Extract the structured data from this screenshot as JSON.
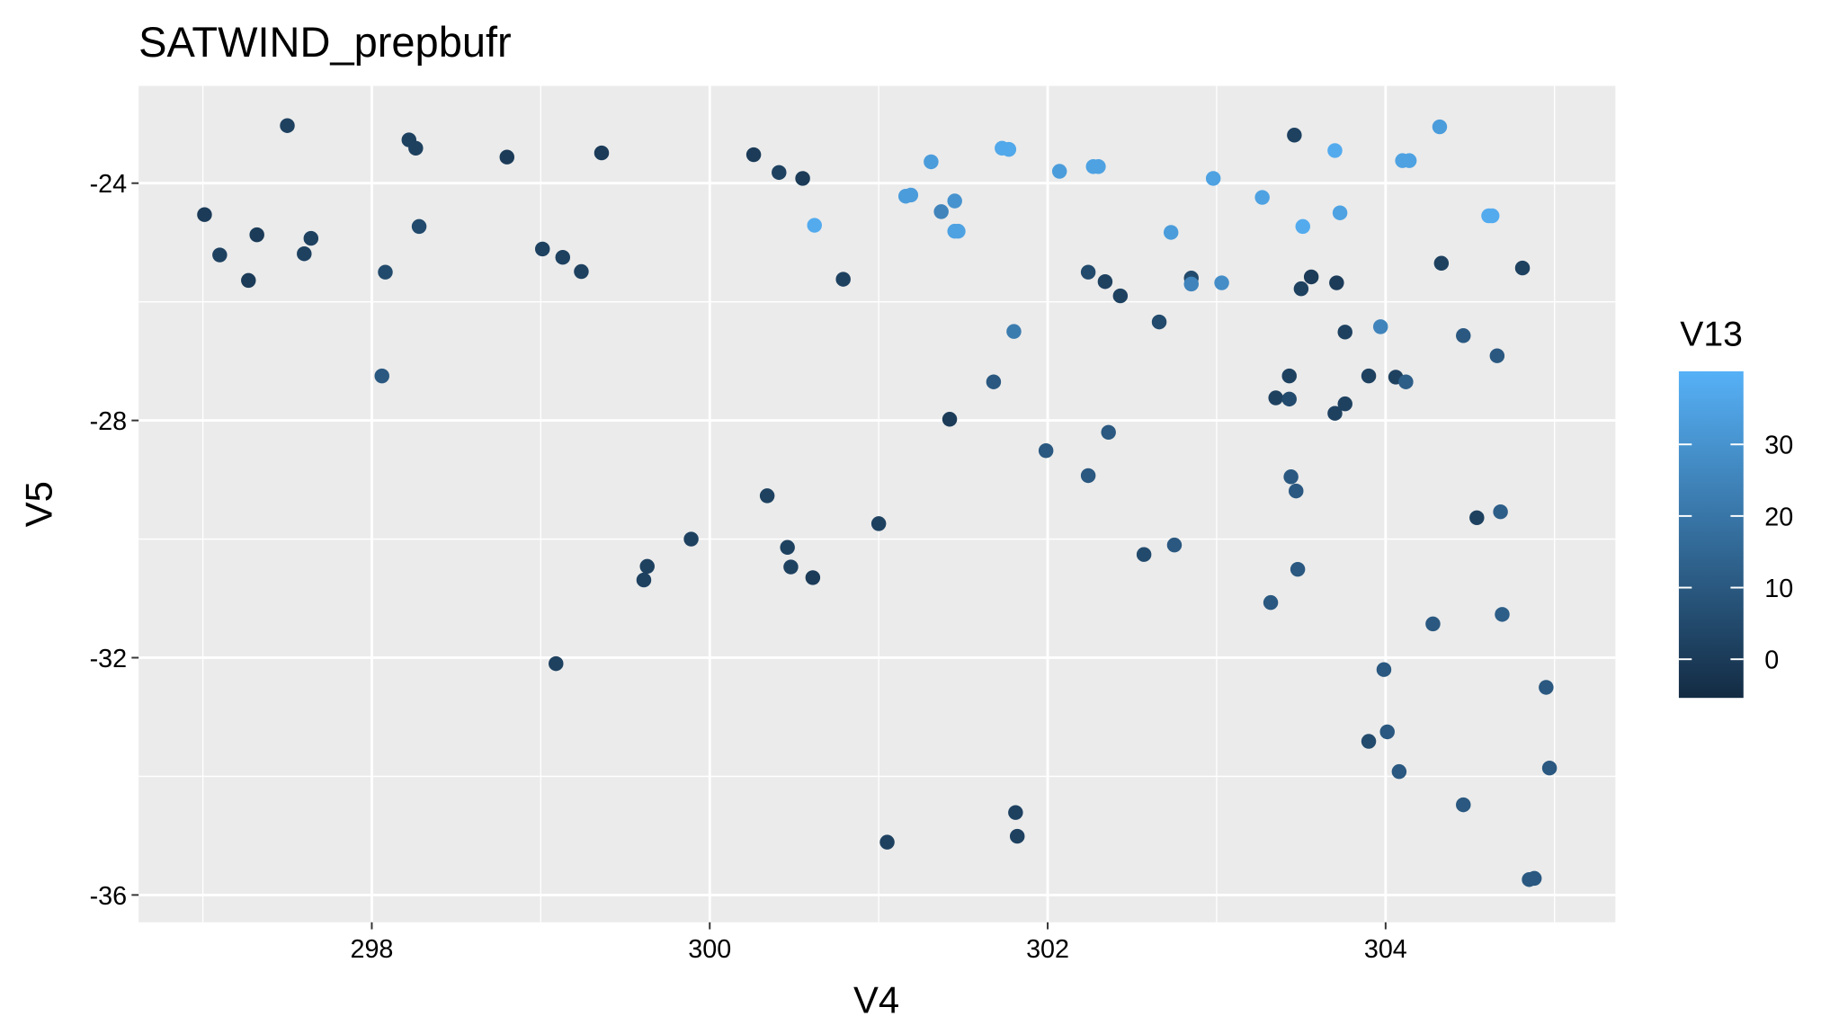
{
  "chart_data": {
    "type": "scatter",
    "title": "SATWIND_prepbufr",
    "x_label": "V4",
    "y_label": "V5",
    "color_label": "V13",
    "x": [
      297.01,
      297.1,
      297.27,
      297.32,
      297.5,
      297.6,
      297.64,
      298.06,
      298.08,
      298.22,
      298.26,
      298.28,
      298.8,
      299.01,
      299.13,
      299.24,
      299.36,
      299.09,
      299.61,
      299.63,
      299.89,
      300.26,
      300.34,
      300.41,
      300.46,
      300.48,
      300.55,
      300.61,
      300.62,
      300.79,
      301.0,
      301.05,
      301.16,
      301.19,
      301.31,
      301.37,
      301.42,
      301.45,
      301.45,
      301.47,
      301.68,
      301.73,
      301.77,
      301.8,
      301.81,
      301.82,
      301.99,
      302.07,
      302.24,
      302.24,
      302.27,
      302.3,
      302.34,
      302.36,
      302.43,
      302.57,
      302.66,
      302.73,
      302.75,
      302.85,
      302.85,
      303.03,
      302.98,
      303.27,
      303.32,
      303.35,
      303.43,
      303.43,
      303.44,
      303.46,
      303.47,
      303.48,
      303.5,
      303.51,
      303.56,
      303.7,
      303.7,
      303.71,
      303.73,
      303.76,
      303.76,
      303.9,
      303.9,
      303.97,
      303.99,
      304.01,
      304.06,
      304.08,
      304.1,
      304.12,
      304.14,
      304.28,
      304.32,
      304.33,
      304.46,
      304.46,
      304.54,
      304.61,
      304.63,
      304.66,
      304.68,
      304.69,
      304.81,
      304.85,
      304.88,
      304.95,
      304.97
    ],
    "y": [
      -24.53,
      -25.21,
      -25.64,
      -24.87,
      -23.03,
      -25.19,
      -24.93,
      -27.25,
      -25.5,
      -23.27,
      -23.41,
      -24.73,
      -23.56,
      -25.11,
      -25.25,
      -25.49,
      -23.49,
      -32.1,
      -30.69,
      -30.46,
      -30.0,
      -23.52,
      -29.27,
      -23.82,
      -30.14,
      -30.47,
      -23.92,
      -30.65,
      -24.71,
      -25.62,
      -29.74,
      -35.11,
      -24.22,
      -24.2,
      -23.64,
      -24.48,
      -27.98,
      -24.3,
      -24.81,
      -24.81,
      -27.35,
      -23.41,
      -23.43,
      -26.5,
      -34.61,
      -35.01,
      -28.51,
      -23.8,
      -25.5,
      -28.93,
      -23.72,
      -23.72,
      -25.66,
      -28.2,
      -25.9,
      -30.26,
      -26.34,
      -24.83,
      -30.1,
      -25.6,
      -25.7,
      -25.68,
      -23.92,
      -24.24,
      -31.07,
      -27.62,
      -27.25,
      -27.64,
      -28.95,
      -23.19,
      -29.19,
      -30.51,
      -25.78,
      -24.73,
      -25.58,
      -27.88,
      -23.45,
      -25.68,
      -24.5,
      -26.51,
      -27.72,
      -33.41,
      -27.25,
      -26.42,
      -32.2,
      -33.25,
      -27.27,
      -33.92,
      -23.62,
      -27.35,
      -23.62,
      -31.43,
      -23.05,
      -25.35,
      -34.48,
      -26.57,
      -29.64,
      -24.55,
      -24.55,
      -26.91,
      -29.54,
      -31.27,
      -25.43,
      -35.74,
      -35.72,
      -32.5,
      -33.86
    ],
    "color_values": [
      0,
      2,
      0,
      0,
      2,
      2,
      2,
      10,
      5,
      2,
      2,
      5,
      0,
      2,
      2,
      2,
      0,
      2,
      2,
      2,
      2,
      0,
      2,
      2,
      2,
      2,
      0,
      0,
      38,
      2,
      2,
      2,
      33,
      33,
      33,
      25,
      0,
      30,
      35,
      35,
      10,
      37,
      37,
      22,
      2,
      2,
      10,
      33,
      5,
      10,
      35,
      35,
      2,
      10,
      2,
      5,
      5,
      33,
      10,
      5,
      25,
      28,
      35,
      35,
      10,
      2,
      2,
      5,
      10,
      2,
      10,
      10,
      2,
      38,
      0,
      2,
      38,
      0,
      35,
      2,
      2,
      5,
      2,
      25,
      10,
      10,
      2,
      10,
      35,
      12,
      35,
      10,
      33,
      2,
      10,
      10,
      2,
      38,
      38,
      10,
      12,
      12,
      2,
      10,
      10,
      10,
      10
    ],
    "xlim": [
      296.62,
      305.36
    ],
    "ylim": [
      -36.46,
      -22.36
    ],
    "xticks": [
      298,
      300,
      302,
      304
    ],
    "yticks": [
      -36,
      -32,
      -28,
      -24
    ],
    "clim": [
      -5.4,
      40.2
    ],
    "cticks": [
      0,
      10,
      20,
      30
    ],
    "color_low": "#132b43",
    "color_high": "#56b1f7",
    "panel_color": "#ebebeb",
    "grid": true
  }
}
